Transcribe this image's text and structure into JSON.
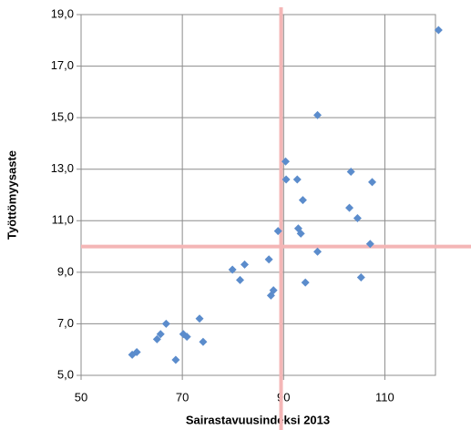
{
  "chart_data": {
    "type": "scatter",
    "x_label": "Sairastavuusindeksi 2013",
    "y_label": "Työttömyysaste",
    "color": "#5b8ccc",
    "grid": true,
    "xlim": [
      50,
      120
    ],
    "xticks": [
      50,
      70,
      90,
      110
    ],
    "ylim": [
      5,
      19
    ],
    "yticks": [
      {
        "value": 5,
        "label": "5,0"
      },
      {
        "value": 7,
        "label": "7,0"
      },
      {
        "value": 9,
        "label": "9,0"
      },
      {
        "value": 11,
        "label": "11,0"
      },
      {
        "value": 13,
        "label": "13,0"
      },
      {
        "value": 15,
        "label": "15,0"
      },
      {
        "value": 17,
        "label": "17,0"
      },
      {
        "value": 19,
        "label": "19,0"
      }
    ],
    "reference_lines": {
      "x": 89.5,
      "y": 10,
      "color": "#f4b6b6"
    },
    "x": [
      120.6,
      96.7,
      90.4,
      92.7,
      90.5,
      103.3,
      107.5,
      93.8,
      103.0,
      104.6,
      92.9,
      93.4,
      88.9,
      107.1,
      96.7,
      87.1,
      82.3,
      79.9,
      81.4,
      88.0,
      87.5,
      94.3,
      105.3,
      73.4,
      66.8,
      70.2,
      70.9,
      74.1,
      65.7,
      65.0,
      68.7,
      61.0,
      60.1
    ],
    "values": [
      18.4,
      15.1,
      13.3,
      12.6,
      12.6,
      12.9,
      12.5,
      11.8,
      11.5,
      11.1,
      10.7,
      10.5,
      10.6,
      10.1,
      9.8,
      9.5,
      9.3,
      9.1,
      8.7,
      8.3,
      8.1,
      8.6,
      8.8,
      7.2,
      7.0,
      6.6,
      6.5,
      6.3,
      6.6,
      6.4,
      5.6,
      5.9,
      5.8
    ]
  }
}
